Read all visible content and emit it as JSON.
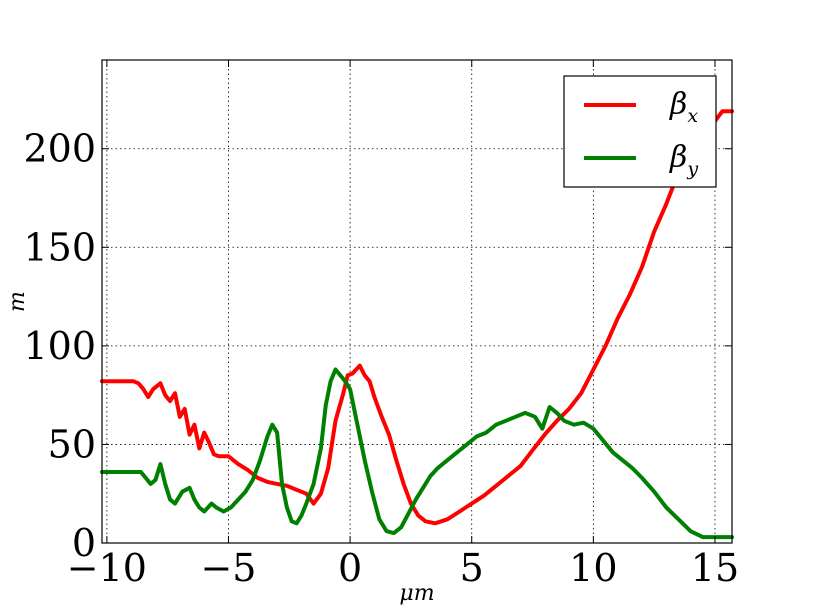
{
  "chart_data": {
    "type": "line",
    "title": "",
    "xlabel": "μm",
    "ylabel": "m",
    "xlim": [
      -10.2,
      15.7
    ],
    "ylim": [
      0,
      245
    ],
    "grid": true,
    "legend_position": "top-right",
    "xticks": [
      -10,
      -5,
      0,
      5,
      10,
      15
    ],
    "xtick_labels": [
      "−10",
      "−5",
      "0",
      "5",
      "10",
      "15"
    ],
    "yticks": [
      0,
      50,
      100,
      150,
      200
    ],
    "ytick_labels": [
      "0",
      "50",
      "100",
      "150",
      "200"
    ],
    "series": [
      {
        "name": "β",
        "subscript": "x",
        "color": "#ff0000",
        "points": [
          [
            -10.2,
            82
          ],
          [
            -8.9,
            82
          ],
          [
            -8.7,
            81
          ],
          [
            -8.5,
            78
          ],
          [
            -8.3,
            74
          ],
          [
            -8.1,
            78
          ],
          [
            -7.8,
            81
          ],
          [
            -7.6,
            75
          ],
          [
            -7.4,
            72
          ],
          [
            -7.2,
            76
          ],
          [
            -7.0,
            64
          ],
          [
            -6.8,
            68
          ],
          [
            -6.6,
            55
          ],
          [
            -6.4,
            60
          ],
          [
            -6.2,
            48
          ],
          [
            -6.0,
            56
          ],
          [
            -5.8,
            51
          ],
          [
            -5.6,
            45
          ],
          [
            -5.4,
            44
          ],
          [
            -5.0,
            44
          ],
          [
            -4.6,
            40
          ],
          [
            -4.2,
            37
          ],
          [
            -3.8,
            33
          ],
          [
            -3.4,
            31
          ],
          [
            -3.0,
            30
          ],
          [
            -2.6,
            29
          ],
          [
            -2.2,
            27
          ],
          [
            -1.8,
            25
          ],
          [
            -1.5,
            20
          ],
          [
            -1.2,
            25
          ],
          [
            -0.9,
            38
          ],
          [
            -0.6,
            62
          ],
          [
            -0.3,
            75
          ],
          [
            -0.1,
            85
          ],
          [
            0.1,
            86
          ],
          [
            0.4,
            90
          ],
          [
            0.6,
            85
          ],
          [
            0.8,
            82
          ],
          [
            1.0,
            74
          ],
          [
            1.3,
            64
          ],
          [
            1.6,
            55
          ],
          [
            1.9,
            42
          ],
          [
            2.2,
            30
          ],
          [
            2.5,
            20
          ],
          [
            2.8,
            14
          ],
          [
            3.1,
            11
          ],
          [
            3.5,
            10
          ],
          [
            4.0,
            12
          ],
          [
            4.5,
            16
          ],
          [
            5.0,
            20
          ],
          [
            5.5,
            24
          ],
          [
            6.0,
            29
          ],
          [
            6.5,
            34
          ],
          [
            7.0,
            39
          ],
          [
            7.5,
            47
          ],
          [
            8.0,
            55
          ],
          [
            8.5,
            62
          ],
          [
            9.0,
            68
          ],
          [
            9.5,
            76
          ],
          [
            10.0,
            88
          ],
          [
            10.5,
            100
          ],
          [
            11.0,
            114
          ],
          [
            11.5,
            126
          ],
          [
            12.0,
            140
          ],
          [
            12.5,
            158
          ],
          [
            13.0,
            172
          ],
          [
            13.5,
            188
          ],
          [
            14.0,
            202
          ],
          [
            14.5,
            210
          ],
          [
            15.0,
            214
          ],
          [
            15.3,
            219
          ],
          [
            15.7,
            219
          ]
        ]
      },
      {
        "name": "β",
        "subscript": "y",
        "color": "#008000",
        "points": [
          [
            -10.2,
            36
          ],
          [
            -8.6,
            36
          ],
          [
            -8.2,
            30
          ],
          [
            -8.0,
            32
          ],
          [
            -7.8,
            40
          ],
          [
            -7.6,
            30
          ],
          [
            -7.4,
            22
          ],
          [
            -7.2,
            20
          ],
          [
            -6.9,
            26
          ],
          [
            -6.6,
            28
          ],
          [
            -6.4,
            22
          ],
          [
            -6.2,
            18
          ],
          [
            -6.0,
            16
          ],
          [
            -5.7,
            20
          ],
          [
            -5.5,
            18
          ],
          [
            -5.2,
            16
          ],
          [
            -4.9,
            18
          ],
          [
            -4.6,
            22
          ],
          [
            -4.3,
            26
          ],
          [
            -4.0,
            32
          ],
          [
            -3.7,
            42
          ],
          [
            -3.4,
            54
          ],
          [
            -3.2,
            60
          ],
          [
            -3.0,
            56
          ],
          [
            -2.8,
            30
          ],
          [
            -2.6,
            18
          ],
          [
            -2.4,
            11
          ],
          [
            -2.2,
            10
          ],
          [
            -2.0,
            14
          ],
          [
            -1.8,
            20
          ],
          [
            -1.5,
            30
          ],
          [
            -1.2,
            48
          ],
          [
            -1.0,
            70
          ],
          [
            -0.8,
            82
          ],
          [
            -0.6,
            88
          ],
          [
            -0.4,
            85
          ],
          [
            -0.2,
            82
          ],
          [
            0.0,
            78
          ],
          [
            0.3,
            60
          ],
          [
            0.6,
            42
          ],
          [
            0.9,
            26
          ],
          [
            1.2,
            12
          ],
          [
            1.5,
            6
          ],
          [
            1.8,
            5
          ],
          [
            2.1,
            8
          ],
          [
            2.4,
            15
          ],
          [
            2.7,
            22
          ],
          [
            3.0,
            28
          ],
          [
            3.3,
            34
          ],
          [
            3.6,
            38
          ],
          [
            4.0,
            42
          ],
          [
            4.4,
            46
          ],
          [
            4.8,
            50
          ],
          [
            5.2,
            54
          ],
          [
            5.6,
            56
          ],
          [
            6.0,
            60
          ],
          [
            6.4,
            62
          ],
          [
            6.8,
            64
          ],
          [
            7.2,
            66
          ],
          [
            7.6,
            64
          ],
          [
            7.9,
            58
          ],
          [
            8.2,
            69
          ],
          [
            8.5,
            66
          ],
          [
            8.8,
            62
          ],
          [
            9.2,
            60
          ],
          [
            9.6,
            61
          ],
          [
            10.0,
            58
          ],
          [
            10.4,
            52
          ],
          [
            10.8,
            46
          ],
          [
            11.2,
            42
          ],
          [
            11.6,
            38
          ],
          [
            12.0,
            33
          ],
          [
            12.5,
            26
          ],
          [
            13.0,
            18
          ],
          [
            13.5,
            12
          ],
          [
            14.0,
            6
          ],
          [
            14.5,
            3
          ],
          [
            15.0,
            3
          ],
          [
            15.7,
            3
          ]
        ]
      }
    ]
  }
}
